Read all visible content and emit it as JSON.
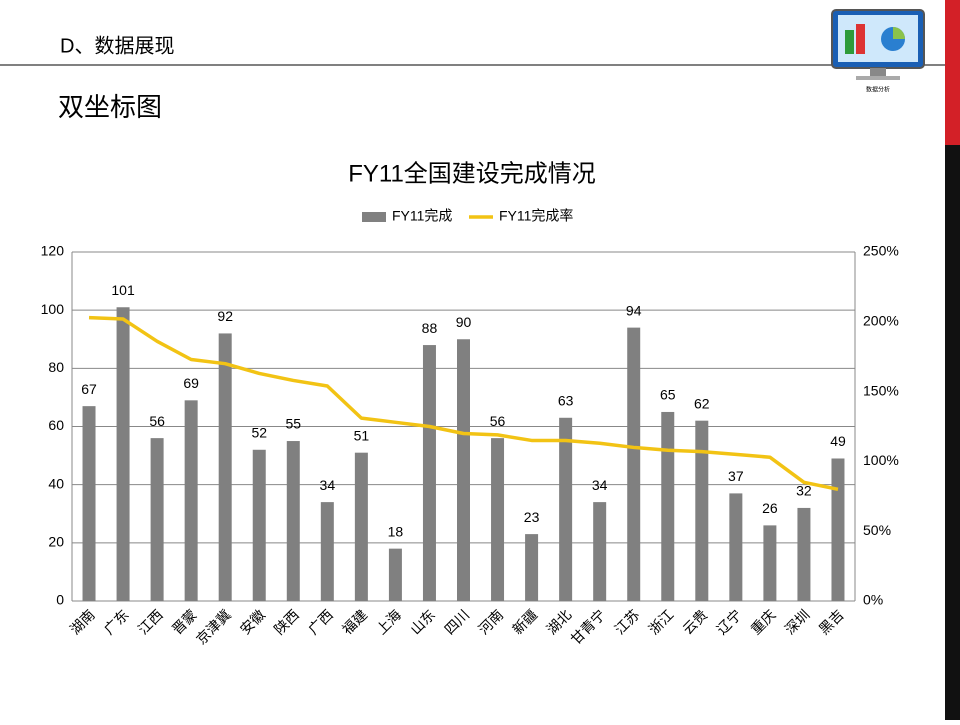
{
  "header": {
    "section": "D、数据展现",
    "subtitle": "双坐标图",
    "logo_caption": "数据分析"
  },
  "chart_data": {
    "type": "bar-line",
    "title": "FY11全国建设完成情况",
    "categories": [
      "湖南",
      "广东",
      "江西",
      "晋蒙",
      "京津冀",
      "安徽",
      "陕西",
      "广西",
      "福建",
      "上海",
      "山东",
      "四川",
      "河南",
      "新疆",
      "湖北",
      "甘青宁",
      "江苏",
      "浙江",
      "云贵",
      "辽宁",
      "重庆",
      "深圳",
      "黑吉"
    ],
    "series": [
      {
        "name": "FY11完成",
        "type": "bar",
        "color": "#808080",
        "values": [
          67,
          101,
          56,
          69,
          92,
          52,
          55,
          34,
          51,
          18,
          88,
          90,
          56,
          23,
          63,
          34,
          94,
          65,
          62,
          37,
          26,
          32,
          49
        ]
      },
      {
        "name": "FY11完成率",
        "type": "line",
        "axis": "y2",
        "color": "#f2c314",
        "values": [
          203,
          202,
          186,
          173,
          170,
          163,
          158,
          154,
          131,
          128,
          125,
          120,
          119,
          115,
          115,
          113,
          110,
          108,
          107,
          105,
          103,
          85,
          80
        ]
      }
    ],
    "ylim": [
      0,
      120
    ],
    "yticks": [
      0,
      20,
      40,
      60,
      80,
      100,
      120
    ],
    "y2lim": [
      0,
      250
    ],
    "y2ticks": [
      {
        "value": 0,
        "label": "0%"
      },
      {
        "value": 50,
        "label": "50%"
      },
      {
        "value": 100,
        "label": "100%"
      },
      {
        "value": 150,
        "label": "150%"
      },
      {
        "value": 200,
        "label": "200%"
      },
      {
        "value": 250,
        "label": "250%"
      }
    ],
    "grid": true,
    "legend": "top"
  }
}
